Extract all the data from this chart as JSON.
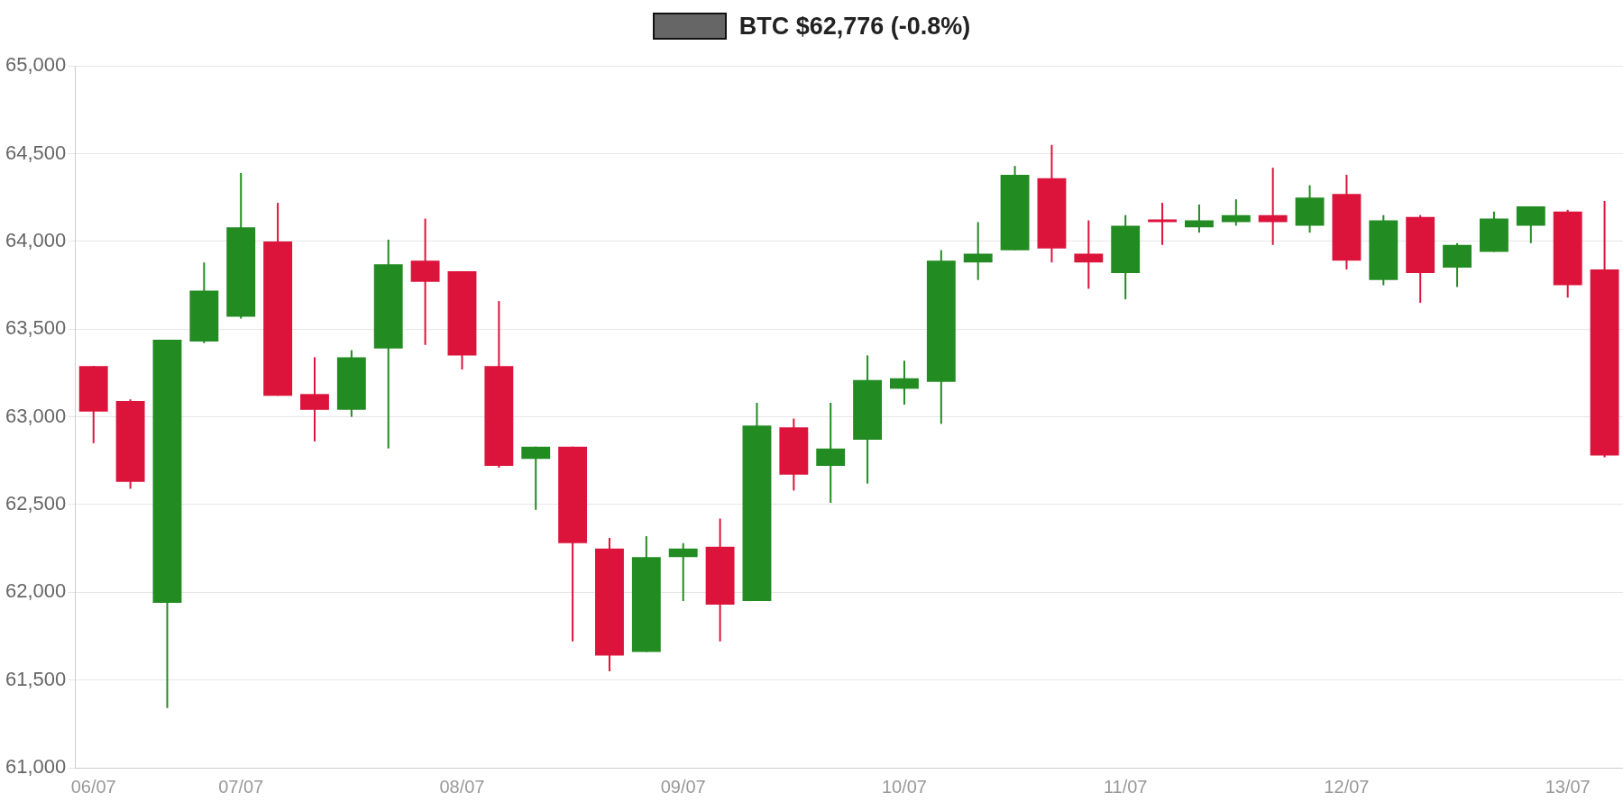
{
  "chart_data": {
    "type": "candlestick",
    "categories": [
      "06/07",
      null,
      null,
      null,
      "07/07",
      null,
      null,
      null,
      null,
      null,
      "08/07",
      null,
      null,
      null,
      null,
      null,
      "09/07",
      null,
      null,
      null,
      null,
      null,
      "10/07",
      null,
      null,
      null,
      null,
      null,
      "11/07",
      null,
      null,
      null,
      null,
      null,
      "12/07",
      null,
      null,
      null,
      null,
      null,
      "13/07",
      null
    ],
    "series": [
      {
        "name": "BTC $62,776 (-0.8%)",
        "color": "#666666",
        "ohlc": [
          [
            63290,
            63290,
            62850,
            63030
          ],
          [
            63090,
            63100,
            62590,
            62630
          ],
          [
            61940,
            63440,
            61340,
            63440
          ],
          [
            63430,
            63880,
            63420,
            63720
          ],
          [
            63570,
            64390,
            63560,
            64080
          ],
          [
            64000,
            64220,
            63120,
            63120
          ],
          [
            63130,
            63340,
            62860,
            63040
          ],
          [
            63040,
            63380,
            63000,
            63340
          ],
          [
            63390,
            64010,
            62820,
            63870
          ],
          [
            63890,
            64130,
            63410,
            63770
          ],
          [
            63830,
            63830,
            63270,
            63350
          ],
          [
            63290,
            63660,
            62710,
            62720
          ],
          [
            62760,
            62830,
            62470,
            62830
          ],
          [
            62830,
            62830,
            61720,
            62280
          ],
          [
            62250,
            62310,
            61550,
            61640
          ],
          [
            61660,
            62320,
            61660,
            62200
          ],
          [
            62200,
            62280,
            61950,
            62250
          ],
          [
            62260,
            62420,
            61720,
            61930
          ],
          [
            61950,
            63080,
            61950,
            62950
          ],
          [
            62940,
            62990,
            62580,
            62670
          ],
          [
            62720,
            63080,
            62510,
            62820
          ],
          [
            62870,
            63350,
            62620,
            63210
          ],
          [
            63160,
            63320,
            63070,
            63220
          ],
          [
            63200,
            63950,
            62960,
            63890
          ],
          [
            63880,
            64110,
            63780,
            63930
          ],
          [
            63950,
            64430,
            63950,
            64380
          ],
          [
            64360,
            64550,
            63880,
            63960
          ],
          [
            63930,
            64120,
            63730,
            63880
          ],
          [
            63820,
            64150,
            63670,
            64090
          ],
          [
            64120,
            64220,
            63980,
            64110
          ],
          [
            64080,
            64210,
            64050,
            64120
          ],
          [
            64110,
            64240,
            64090,
            64150
          ],
          [
            64150,
            64420,
            63980,
            64110
          ],
          [
            64090,
            64320,
            64050,
            64250
          ],
          [
            64270,
            64380,
            63840,
            63890
          ],
          [
            63780,
            64150,
            63750,
            64120
          ],
          [
            64140,
            64150,
            63650,
            63820
          ],
          [
            63850,
            63990,
            63740,
            63980
          ],
          [
            63940,
            64170,
            63940,
            64130
          ],
          [
            64090,
            64200,
            63990,
            64200
          ],
          [
            64170,
            64180,
            63680,
            63750
          ],
          [
            63840,
            64230,
            62770,
            62780
          ]
        ],
        "colors": [
          "#dc143c",
          "#dc143c",
          "#228b22",
          "#228b22",
          "#228b22",
          "#dc143c",
          "#dc143c",
          "#228b22",
          "#228b22",
          "#dc143c",
          "#dc143c",
          "#dc143c",
          "#228b22",
          "#dc143c",
          "#dc143c",
          "#228b22",
          "#228b22",
          "#dc143c",
          "#228b22",
          "#dc143c",
          "#228b22",
          "#228b22",
          "#228b22",
          "#228b22",
          "#228b22",
          "#228b22",
          "#dc143c",
          "#dc143c",
          "#228b22",
          "#dc143c",
          "#228b22",
          "#228b22",
          "#dc143c",
          "#228b22",
          "#dc143c",
          "#228b22",
          "#dc143c",
          "#228b22",
          "#228b22",
          "#228b22",
          "#dc143c",
          "#dc143c"
        ]
      }
    ],
    "ylim": [
      61000,
      65000
    ],
    "yticks": [
      {
        "value": 61000,
        "label": "61,000"
      },
      {
        "value": 61500,
        "label": "61,500"
      },
      {
        "value": 62000,
        "label": "62,000"
      },
      {
        "value": 62500,
        "label": "62,500"
      },
      {
        "value": 63000,
        "label": "63,000"
      },
      {
        "value": 63500,
        "label": "63,500"
      },
      {
        "value": 64000,
        "label": "64,000"
      },
      {
        "value": 64500,
        "label": "64,500"
      },
      {
        "value": 65000,
        "label": "65,000"
      }
    ],
    "grid": "y",
    "legend": "top"
  }
}
